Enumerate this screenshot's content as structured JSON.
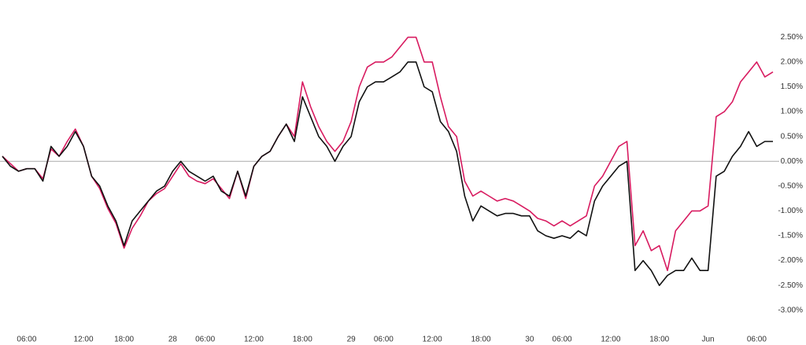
{
  "chart_data": {
    "type": "line",
    "categories": [
      null,
      null,
      null,
      "06:00",
      null,
      null,
      null,
      null,
      null,
      null,
      "12:00",
      null,
      null,
      null,
      null,
      "18:00",
      null,
      null,
      null,
      null,
      null,
      "28",
      null,
      null,
      null,
      "06:00",
      null,
      null,
      null,
      null,
      null,
      "12:00",
      null,
      null,
      null,
      null,
      null,
      "18:00",
      null,
      null,
      null,
      null,
      null,
      "29",
      null,
      null,
      null,
      "06:00",
      null,
      null,
      null,
      null,
      null,
      "12:00",
      null,
      null,
      null,
      null,
      null,
      "18:00",
      null,
      null,
      null,
      null,
      null,
      "30",
      null,
      null,
      null,
      "06:00",
      null,
      null,
      null,
      null,
      null,
      "12:00",
      null,
      null,
      null,
      null,
      null,
      "18:00",
      null,
      null,
      null,
      null,
      null,
      "Jun",
      null,
      null,
      null,
      null,
      null,
      "06:00",
      null,
      null
    ],
    "series": [
      {
        "color": "#d81b60",
        "values": [
          0.1,
          -0.05,
          -0.2,
          -0.15,
          -0.15,
          -0.35,
          0.25,
          0.1,
          0.4,
          0.65,
          0.3,
          -0.3,
          -0.55,
          -0.95,
          -1.25,
          -1.75,
          -1.35,
          -1.1,
          -0.8,
          -0.65,
          -0.55,
          -0.3,
          -0.05,
          -0.3,
          -0.4,
          -0.45,
          -0.35,
          -0.55,
          -0.75,
          -0.2,
          -0.75,
          -0.1,
          0.1,
          0.2,
          0.5,
          0.75,
          0.5,
          1.6,
          1.1,
          0.7,
          0.4,
          0.2,
          0.4,
          0.8,
          1.5,
          1.9,
          2.0,
          2.0,
          2.1,
          2.3,
          2.5,
          2.5,
          2.0,
          2.0,
          1.3,
          0.7,
          0.5,
          -0.4,
          -0.7,
          -0.6,
          -0.7,
          -0.8,
          -0.75,
          -0.8,
          -0.9,
          -1.0,
          -1.15,
          -1.2,
          -1.3,
          -1.2,
          -1.3,
          -1.2,
          -1.1,
          -0.5,
          -0.3,
          0.0,
          0.3,
          0.4,
          -1.7,
          -1.4,
          -1.8,
          -1.7,
          -2.2,
          -1.4,
          -1.2,
          -1.0,
          -1.0,
          -0.9,
          0.9,
          1.0,
          1.2,
          1.6,
          1.8,
          2.0,
          1.7,
          1.8
        ]
      },
      {
        "color": "#111111",
        "values": [
          0.1,
          -0.1,
          -0.2,
          -0.15,
          -0.15,
          -0.4,
          0.3,
          0.1,
          0.3,
          0.6,
          0.3,
          -0.3,
          -0.5,
          -0.9,
          -1.2,
          -1.7,
          -1.2,
          -1.0,
          -0.8,
          -0.6,
          -0.5,
          -0.2,
          0.0,
          -0.2,
          -0.3,
          -0.4,
          -0.3,
          -0.6,
          -0.7,
          -0.2,
          -0.7,
          -0.1,
          0.1,
          0.2,
          0.5,
          0.75,
          0.4,
          1.3,
          0.9,
          0.5,
          0.3,
          0.0,
          0.3,
          0.5,
          1.2,
          1.5,
          1.6,
          1.6,
          1.7,
          1.8,
          2.0,
          2.0,
          1.5,
          1.4,
          0.8,
          0.6,
          0.2,
          -0.7,
          -1.2,
          -0.9,
          -1.0,
          -1.1,
          -1.05,
          -1.05,
          -1.1,
          -1.1,
          -1.4,
          -1.5,
          -1.55,
          -1.5,
          -1.55,
          -1.4,
          -1.5,
          -0.8,
          -0.5,
          -0.3,
          -0.1,
          0.0,
          -2.2,
          -2.0,
          -2.2,
          -2.5,
          -2.3,
          -2.2,
          -2.2,
          -1.95,
          -2.2,
          -2.2,
          -0.3,
          -0.2,
          0.1,
          0.3,
          0.6,
          0.3,
          0.4,
          0.4
        ]
      }
    ],
    "baseline": 0,
    "ylim": [
      -3.4,
      3.25
    ],
    "yticks": [
      {
        "value": 2.5,
        "label": "2.50%"
      },
      {
        "value": 2.0,
        "label": "2.00%"
      },
      {
        "value": 1.5,
        "label": "1.50%"
      },
      {
        "value": 1.0,
        "label": "1.00%"
      },
      {
        "value": 0.5,
        "label": "0.50%"
      },
      {
        "value": 0,
        "label": "0.00%"
      },
      {
        "value": -0.5,
        "label": "-0.50%"
      },
      {
        "value": -1.0,
        "label": "-1.00%"
      },
      {
        "value": -1.5,
        "label": "-1.50%"
      },
      {
        "value": -2.0,
        "label": "-2.00%"
      },
      {
        "value": -2.5,
        "label": "-2.50%"
      },
      {
        "value": -3.0,
        "label": "-3.00%"
      }
    ],
    "grid": false
  }
}
